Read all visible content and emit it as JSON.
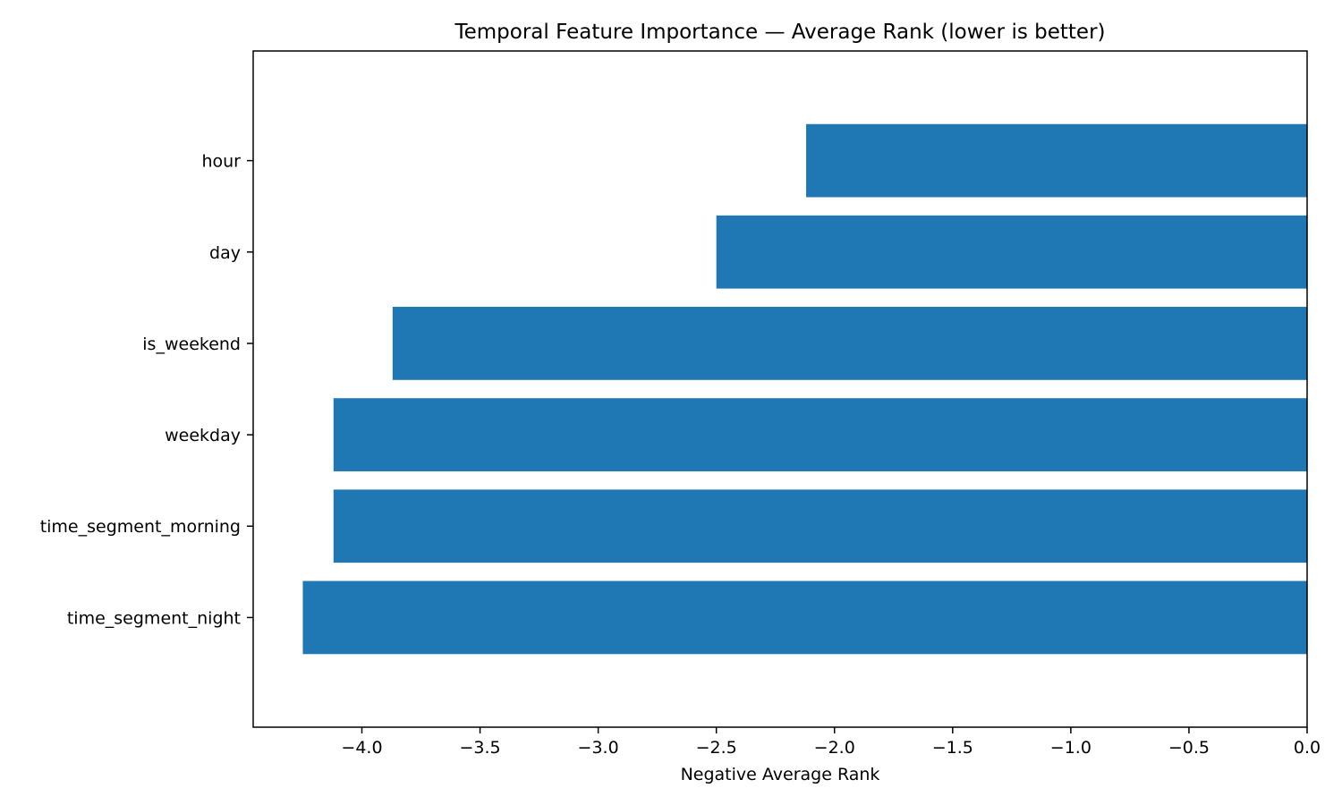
{
  "chart_data": {
    "type": "bar",
    "orientation": "horizontal",
    "title": "Temporal Feature Importance — Average Rank (lower is better)",
    "xlabel": "Negative Average Rank",
    "ylabel": "",
    "categories": [
      "hour",
      "day",
      "is_weekend",
      "weekday",
      "time_segment_morning",
      "time_segment_night"
    ],
    "values": [
      -2.12,
      -2.5,
      -3.87,
      -4.12,
      -4.12,
      -4.25
    ],
    "xlim": [
      -4.46,
      0.0
    ],
    "xticks": [
      -4.0,
      -3.5,
      -3.0,
      -2.5,
      -2.0,
      -1.5,
      -1.0,
      -0.5,
      0.0
    ],
    "xtick_labels": [
      "−4.0",
      "−3.5",
      "−3.0",
      "−2.5",
      "−2.0",
      "−1.5",
      "−1.0",
      "−0.5",
      "0.0"
    ],
    "grid": false,
    "bar_color": "#1f77b4"
  }
}
